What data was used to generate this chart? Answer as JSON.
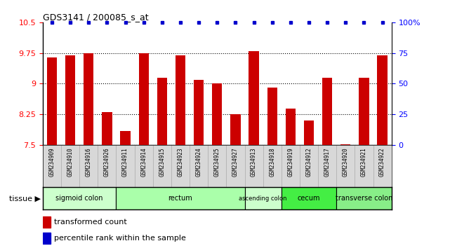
{
  "title": "GDS3141 / 200085_s_at",
  "samples": [
    "GSM234909",
    "GSM234910",
    "GSM234916",
    "GSM234926",
    "GSM234911",
    "GSM234914",
    "GSM234915",
    "GSM234923",
    "GSM234924",
    "GSM234925",
    "GSM234927",
    "GSM234913",
    "GSM234918",
    "GSM234919",
    "GSM234912",
    "GSM234917",
    "GSM234920",
    "GSM234921",
    "GSM234922"
  ],
  "bar_values": [
    9.65,
    9.7,
    9.75,
    8.3,
    7.85,
    9.75,
    9.15,
    9.7,
    9.1,
    9.0,
    8.25,
    9.8,
    8.9,
    8.4,
    8.1,
    9.15,
    7.52,
    9.15,
    9.7
  ],
  "bar_color": "#cc0000",
  "percentile_color": "#0000cc",
  "ylim_left": [
    7.5,
    10.5
  ],
  "yticks_left": [
    7.5,
    8.25,
    9.0,
    9.75,
    10.5
  ],
  "ytick_labels_left": [
    "7.5",
    "8.25",
    "9",
    "9.75",
    "10.5"
  ],
  "yticks_right": [
    0,
    25,
    50,
    75,
    100
  ],
  "ytick_labels_right": [
    "0",
    "25",
    "50",
    "75",
    "100%"
  ],
  "ylim_right": [
    0,
    100
  ],
  "tissue_groups": [
    {
      "label": "sigmoid colon",
      "start": 0,
      "end": 4,
      "color": "#ccffcc"
    },
    {
      "label": "rectum",
      "start": 4,
      "end": 11,
      "color": "#aaffaa"
    },
    {
      "label": "ascending colon",
      "start": 11,
      "end": 13,
      "color": "#ccffcc"
    },
    {
      "label": "cecum",
      "start": 13,
      "end": 16,
      "color": "#44ee44"
    },
    {
      "label": "transverse colon",
      "start": 16,
      "end": 19,
      "color": "#88ee88"
    }
  ],
  "plot_bg": "#ffffff",
  "xticklabel_bg": "#d8d8d8",
  "bar_width": 0.55,
  "legend_bar_label": "transformed count",
  "legend_pct_label": "percentile rank within the sample"
}
